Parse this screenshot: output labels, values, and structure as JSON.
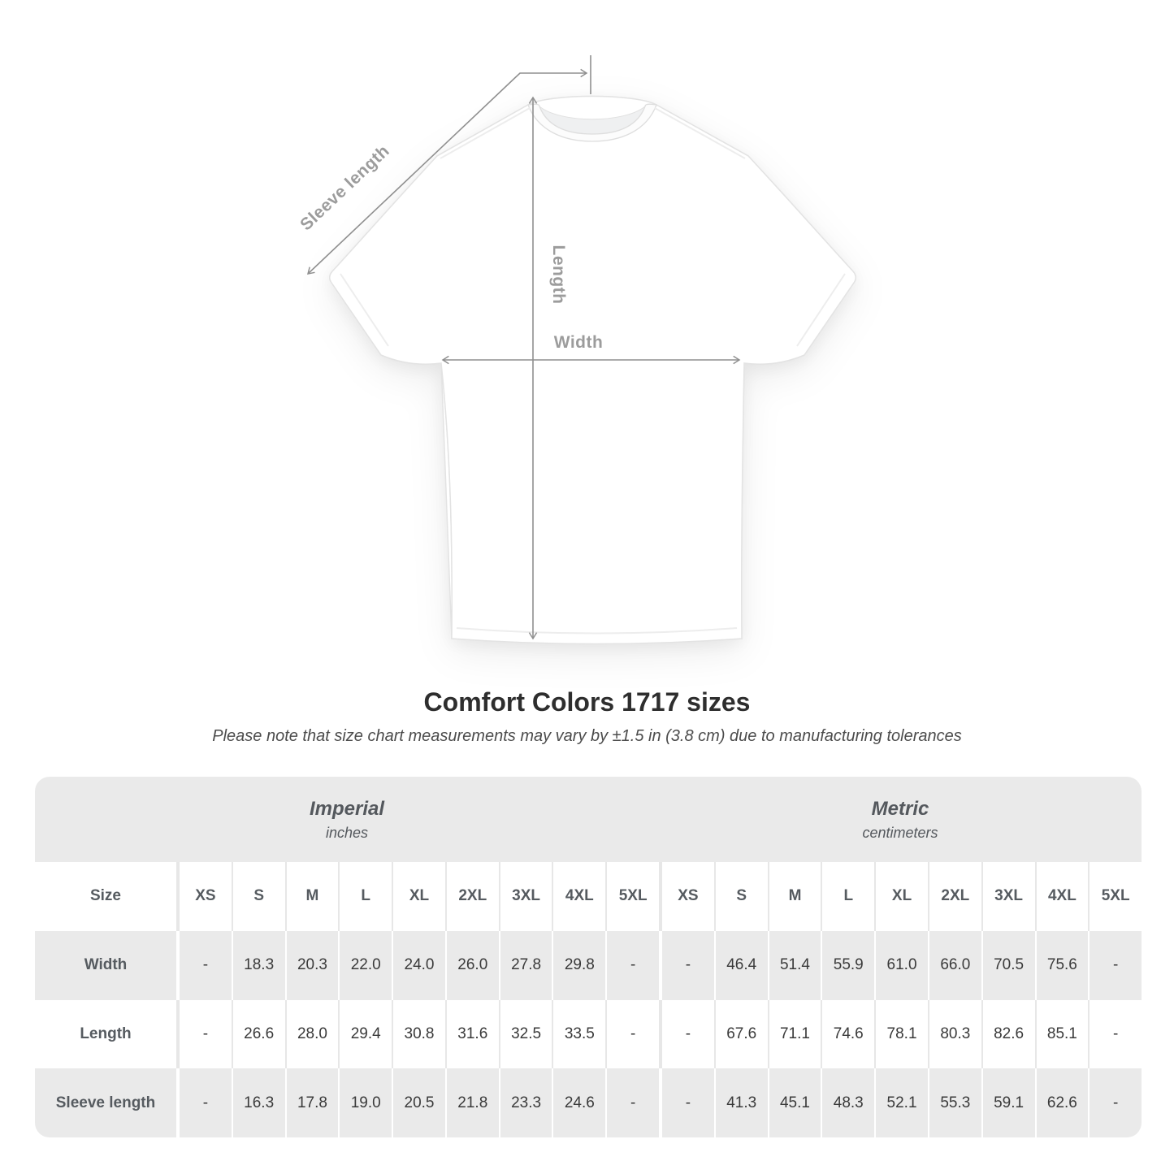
{
  "diagram": {
    "labels": {
      "sleeve": "Sleeve length",
      "length": "Length",
      "width": "Width"
    }
  },
  "title": "Comfort Colors 1717 sizes",
  "subtitle": "Please note that size chart measurements may vary by ±1.5 in (3.8 cm) due to manufacturing tolerances",
  "table": {
    "size_label": "Size",
    "sections": [
      {
        "title": "Imperial",
        "subtitle": "inches"
      },
      {
        "title": "Metric",
        "subtitle": "centimeters"
      }
    ],
    "sizes": [
      "XS",
      "S",
      "M",
      "L",
      "XL",
      "2XL",
      "3XL",
      "4XL",
      "5XL"
    ],
    "rows": [
      {
        "label": "Width",
        "imperial": [
          "-",
          "18.3",
          "20.3",
          "22.0",
          "24.0",
          "26.0",
          "27.8",
          "29.8",
          "-"
        ],
        "metric": [
          "-",
          "46.4",
          "51.4",
          "55.9",
          "61.0",
          "66.0",
          "70.5",
          "75.6",
          "-"
        ]
      },
      {
        "label": "Length",
        "imperial": [
          "-",
          "26.6",
          "28.0",
          "29.4",
          "30.8",
          "31.6",
          "32.5",
          "33.5",
          "-"
        ],
        "metric": [
          "-",
          "67.6",
          "71.1",
          "74.6",
          "78.1",
          "80.3",
          "82.6",
          "85.1",
          "-"
        ]
      },
      {
        "label": "Sleeve length",
        "imperial": [
          "-",
          "16.3",
          "17.8",
          "19.0",
          "20.5",
          "21.8",
          "23.3",
          "24.6",
          "-"
        ],
        "metric": [
          "-",
          "41.3",
          "45.1",
          "48.3",
          "52.1",
          "55.3",
          "59.1",
          "62.6",
          "-"
        ]
      }
    ]
  },
  "chart_data": {
    "type": "table",
    "title": "Comfort Colors 1717 sizes",
    "note": "Please note that size chart measurements may vary by ±1.5 in (3.8 cm) due to manufacturing tolerances",
    "columns": [
      "XS",
      "S",
      "M",
      "L",
      "XL",
      "2XL",
      "3XL",
      "4XL",
      "5XL"
    ],
    "sections": [
      {
        "name": "Imperial (inches)",
        "rows": [
          {
            "label": "Width",
            "values": [
              null,
              18.3,
              20.3,
              22.0,
              24.0,
              26.0,
              27.8,
              29.8,
              null
            ]
          },
          {
            "label": "Length",
            "values": [
              null,
              26.6,
              28.0,
              29.4,
              30.8,
              31.6,
              32.5,
              33.5,
              null
            ]
          },
          {
            "label": "Sleeve length",
            "values": [
              null,
              16.3,
              17.8,
              19.0,
              20.5,
              21.8,
              23.3,
              24.6,
              null
            ]
          }
        ]
      },
      {
        "name": "Metric (centimeters)",
        "rows": [
          {
            "label": "Width",
            "values": [
              null,
              46.4,
              51.4,
              55.9,
              61.0,
              66.0,
              70.5,
              75.6,
              null
            ]
          },
          {
            "label": "Length",
            "values": [
              null,
              67.6,
              71.1,
              74.6,
              78.1,
              80.3,
              82.6,
              85.1,
              null
            ]
          },
          {
            "label": "Sleeve length",
            "values": [
              null,
              41.3,
              45.1,
              48.3,
              52.1,
              55.3,
              59.1,
              62.6,
              null
            ]
          }
        ]
      }
    ]
  },
  "colors": {
    "table_band_gray": "#eaeaea",
    "annotation_gray": "#8f8f8f",
    "label_gray": "#9c9c9c",
    "header_text": "#54585d",
    "value_text": "#3a3a3a"
  }
}
